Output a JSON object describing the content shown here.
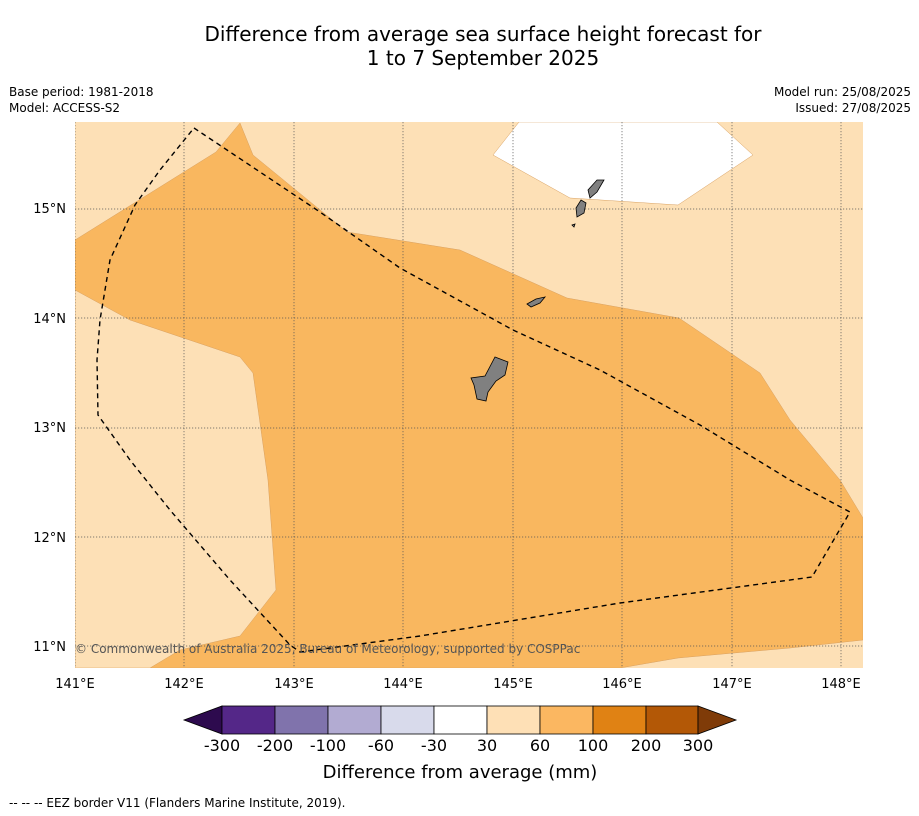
{
  "title_line1": "Difference from average sea surface height forecast for",
  "title_line2": "1 to 7 September 2025",
  "meta_left": [
    "Base period: 1981-2018",
    "Model: ACCESS-S2"
  ],
  "meta_right": [
    "Model run: 25/08/2025",
    "Issued: 27/08/2025"
  ],
  "lon_labels": [
    "141°E",
    "142°E",
    "143°E",
    "144°E",
    "145°E",
    "146°E",
    "147°E",
    "148°E"
  ],
  "lat_labels": [
    "15°N",
    "14°N",
    "13°N",
    "12°N",
    "11°N"
  ],
  "copyright": "© Commonwealth of Australia 2025, Bureau of Meteorology, supported by COSPPac",
  "colorbar": {
    "labels": [
      "-300",
      "-200",
      "-100",
      "-60",
      "-30",
      "30",
      "60",
      "100",
      "200",
      "300"
    ],
    "colors": [
      "#2d0a4e",
      "#542788",
      "#8073ac",
      "#b2abd2",
      "#d8daeb",
      "#ffffff",
      "#fee0b6",
      "#fbb761",
      "#e08214",
      "#b35806",
      "#7f3b08"
    ],
    "title": "Difference from average (mm)"
  },
  "footer": "-- -- -- EEZ border V11 (Flanders Marine Institute, 2019).",
  "colors": {
    "land": "#808080",
    "light_orange": "#fde0b6",
    "orange": "#f9b75f",
    "white": "#ffffff"
  }
}
